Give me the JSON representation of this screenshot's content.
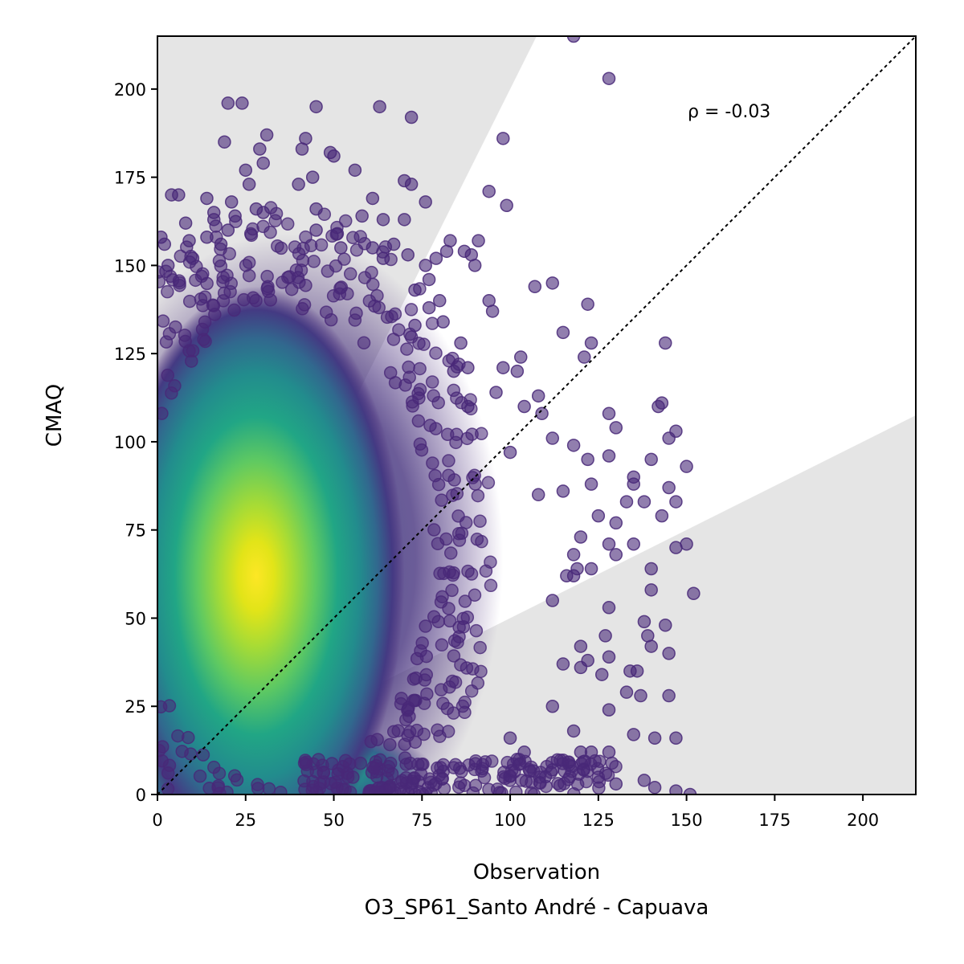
{
  "chart_data": {
    "type": "scatter",
    "title": "",
    "xlabel": "Observation",
    "xlabel_sub": "O3_SP61_Santo André - Capuava",
    "ylabel": "CMAQ",
    "xlim": [
      0,
      215
    ],
    "ylim": [
      0,
      215
    ],
    "xticks": [
      0,
      25,
      50,
      75,
      100,
      125,
      150,
      175,
      200
    ],
    "yticks": [
      0,
      25,
      50,
      75,
      100,
      125,
      150,
      175,
      200
    ],
    "annotation": "ρ = -0.03",
    "identity_line": true,
    "shaded_region_color": "#e5e5e5",
    "point_color": "#482878",
    "colormap": "viridis",
    "density_centers": [
      {
        "x": 28,
        "y": 62
      },
      {
        "x": 30,
        "y": 5
      }
    ],
    "outlier_points": [
      [
        118,
        215
      ],
      [
        128,
        203
      ],
      [
        20,
        196
      ],
      [
        24,
        196
      ],
      [
        45,
        195
      ],
      [
        63,
        195
      ],
      [
        72,
        192
      ],
      [
        98,
        186
      ],
      [
        42,
        186
      ],
      [
        31,
        187
      ],
      [
        19,
        185
      ],
      [
        41,
        183
      ],
      [
        49,
        182
      ],
      [
        29,
        183
      ],
      [
        50,
        181
      ],
      [
        30,
        179
      ],
      [
        25,
        177
      ],
      [
        56,
        177
      ],
      [
        44,
        175
      ],
      [
        70,
        174
      ],
      [
        72,
        173
      ],
      [
        40,
        173
      ],
      [
        26,
        173
      ],
      [
        4,
        170
      ],
      [
        6,
        170
      ],
      [
        14,
        169
      ],
      [
        61,
        169
      ],
      [
        76,
        168
      ],
      [
        21,
        168
      ],
      [
        94,
        171
      ],
      [
        99,
        167
      ],
      [
        45,
        166
      ],
      [
        28,
        166
      ],
      [
        30,
        165
      ],
      [
        16,
        165
      ],
      [
        58,
        164
      ],
      [
        64,
        163
      ],
      [
        70,
        163
      ],
      [
        16,
        163
      ],
      [
        22,
        164
      ],
      [
        8,
        162
      ],
      [
        20,
        160
      ],
      [
        45,
        160
      ],
      [
        1,
        158
      ],
      [
        9,
        157
      ],
      [
        14,
        158
      ],
      [
        51,
        159
      ],
      [
        83,
        157
      ],
      [
        91,
        157
      ],
      [
        2,
        156
      ],
      [
        18,
        156
      ],
      [
        61,
        155
      ],
      [
        67,
        156
      ],
      [
        52,
        155
      ],
      [
        87,
        154
      ],
      [
        89,
        153
      ],
      [
        79,
        152
      ],
      [
        76,
        150
      ],
      [
        82,
        154
      ],
      [
        64,
        152
      ],
      [
        71,
        153
      ],
      [
        90,
        150
      ],
      [
        3,
        150
      ],
      [
        10,
        152
      ],
      [
        77,
        146
      ],
      [
        80,
        140
      ],
      [
        73,
        143
      ],
      [
        107,
        144
      ],
      [
        112,
        145
      ],
      [
        94,
        140
      ],
      [
        95,
        137
      ],
      [
        77,
        138
      ],
      [
        81,
        134
      ],
      [
        73,
        133
      ],
      [
        115,
        131
      ],
      [
        122,
        139
      ],
      [
        144,
        128
      ],
      [
        86,
        128
      ],
      [
        103,
        124
      ],
      [
        123,
        128
      ],
      [
        121,
        124
      ],
      [
        98,
        121
      ],
      [
        102,
        120
      ],
      [
        88,
        121
      ],
      [
        84,
        120
      ],
      [
        96,
        114
      ],
      [
        108,
        113
      ],
      [
        104,
        110
      ],
      [
        88,
        110
      ],
      [
        143,
        111
      ],
      [
        128,
        108
      ],
      [
        142,
        110
      ],
      [
        109,
        108
      ],
      [
        130,
        104
      ],
      [
        147,
        103
      ],
      [
        145,
        101
      ],
      [
        112,
        101
      ],
      [
        118,
        99
      ],
      [
        100,
        97
      ],
      [
        128,
        96
      ],
      [
        140,
        95
      ],
      [
        150,
        93
      ],
      [
        122,
        95
      ],
      [
        135,
        90
      ],
      [
        123,
        88
      ],
      [
        115,
        86
      ],
      [
        108,
        85
      ],
      [
        135,
        88
      ],
      [
        145,
        87
      ],
      [
        133,
        83
      ],
      [
        125,
        79
      ],
      [
        138,
        83
      ],
      [
        147,
        83
      ],
      [
        130,
        77
      ],
      [
        143,
        79
      ],
      [
        120,
        73
      ],
      [
        135,
        71
      ],
      [
        130,
        68
      ],
      [
        128,
        71
      ],
      [
        118,
        68
      ],
      [
        150,
        71
      ],
      [
        147,
        70
      ],
      [
        140,
        64
      ],
      [
        118,
        62
      ],
      [
        116,
        62
      ],
      [
        140,
        58
      ],
      [
        152,
        57
      ],
      [
        123,
        64
      ],
      [
        119,
        64
      ],
      [
        112,
        55
      ],
      [
        128,
        53
      ],
      [
        138,
        49
      ],
      [
        144,
        48
      ],
      [
        139,
        45
      ],
      [
        127,
        45
      ],
      [
        120,
        42
      ],
      [
        128,
        39
      ],
      [
        140,
        42
      ],
      [
        145,
        40
      ],
      [
        134,
        35
      ],
      [
        136,
        35
      ],
      [
        122,
        38
      ],
      [
        115,
        37
      ],
      [
        120,
        36
      ],
      [
        126,
        34
      ],
      [
        133,
        29
      ],
      [
        137,
        28
      ],
      [
        145,
        28
      ],
      [
        128,
        24
      ],
      [
        112,
        25
      ],
      [
        147,
        16
      ],
      [
        141,
        16
      ],
      [
        135,
        17
      ],
      [
        118,
        18
      ],
      [
        120,
        12
      ],
      [
        123,
        12
      ],
      [
        128,
        12
      ],
      [
        112,
        7
      ],
      [
        130,
        3
      ],
      [
        138,
        4
      ],
      [
        141,
        2
      ],
      [
        147,
        1
      ],
      [
        151,
        0
      ],
      [
        104,
        12
      ],
      [
        100,
        16
      ],
      [
        110,
        5
      ]
    ]
  }
}
